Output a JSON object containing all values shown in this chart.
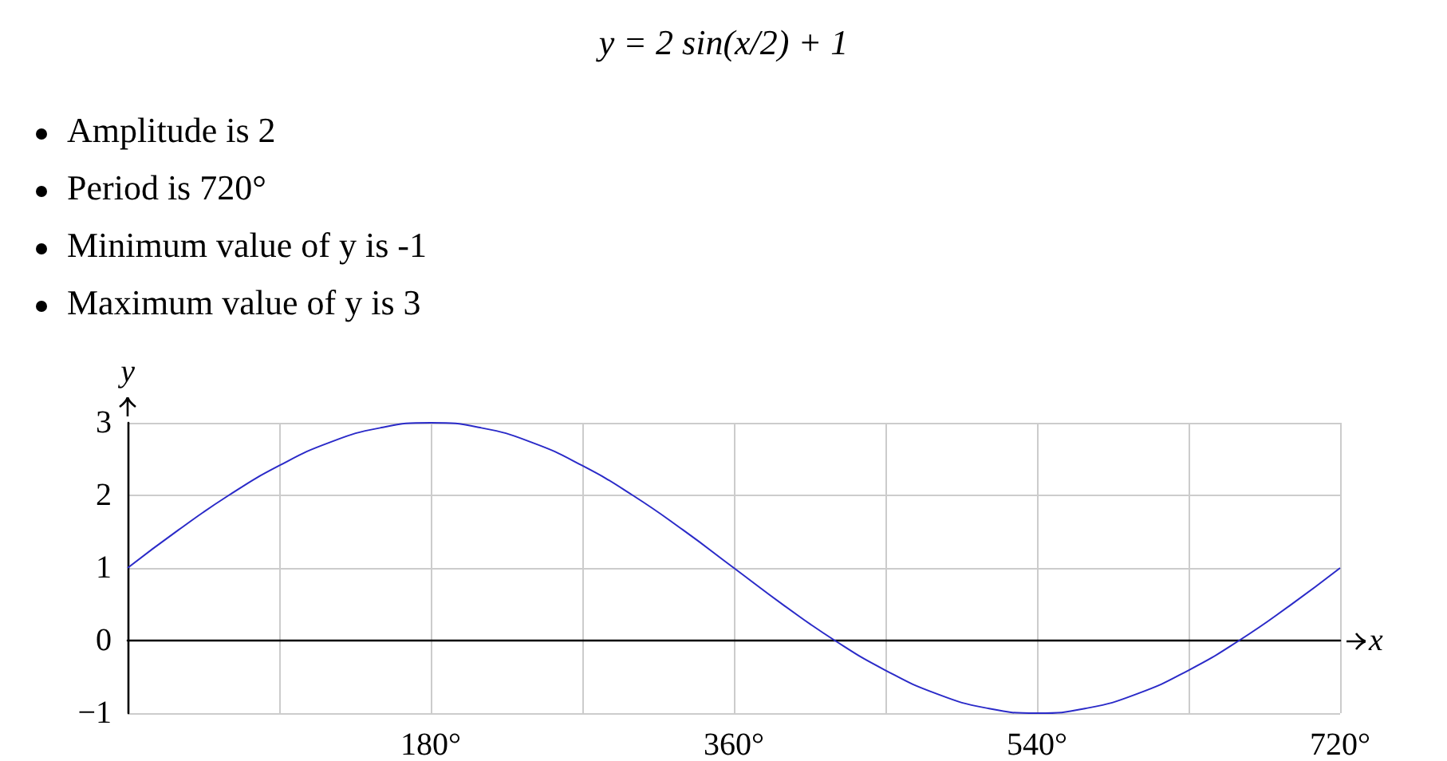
{
  "chart_data": {
    "type": "line",
    "title": "y = 2 sin(x/2) + 1",
    "annotations": [
      "Amplitude is 2",
      "Period is 720°",
      "Minimum value of y is -1",
      "Maximum value of y is 3"
    ],
    "xlabel": "x",
    "ylabel": "y",
    "x": [
      0,
      30,
      60,
      90,
      120,
      150,
      180,
      210,
      240,
      270,
      300,
      330,
      360,
      390,
      420,
      450,
      480,
      510,
      540,
      570,
      600,
      630,
      660,
      690,
      720
    ],
    "series": [
      {
        "color": "#2a2ac8",
        "values": [
          1,
          1.52,
          2,
          2.41,
          2.73,
          2.93,
          3,
          2.93,
          2.73,
          2.41,
          2,
          1.52,
          1,
          0.48,
          0,
          -0.41,
          -0.73,
          -0.93,
          -1,
          -0.93,
          -0.73,
          -0.41,
          0,
          0.48,
          1
        ]
      }
    ],
    "xlim": [
      0,
      720
    ],
    "ylim": [
      -1,
      3
    ],
    "xticks": [
      {
        "value": 90,
        "label": null
      },
      {
        "value": 180,
        "label": "180°"
      },
      {
        "value": 270,
        "label": null
      },
      {
        "value": 360,
        "label": "360°"
      },
      {
        "value": 450,
        "label": null
      },
      {
        "value": 540,
        "label": "540°"
      },
      {
        "value": 630,
        "label": null
      },
      {
        "value": 720,
        "label": "720°"
      }
    ],
    "yticks": [
      {
        "value": -1,
        "label": "−1"
      },
      0,
      1,
      2,
      3
    ],
    "grid": true,
    "marker": "none",
    "line_style": "solid"
  }
}
